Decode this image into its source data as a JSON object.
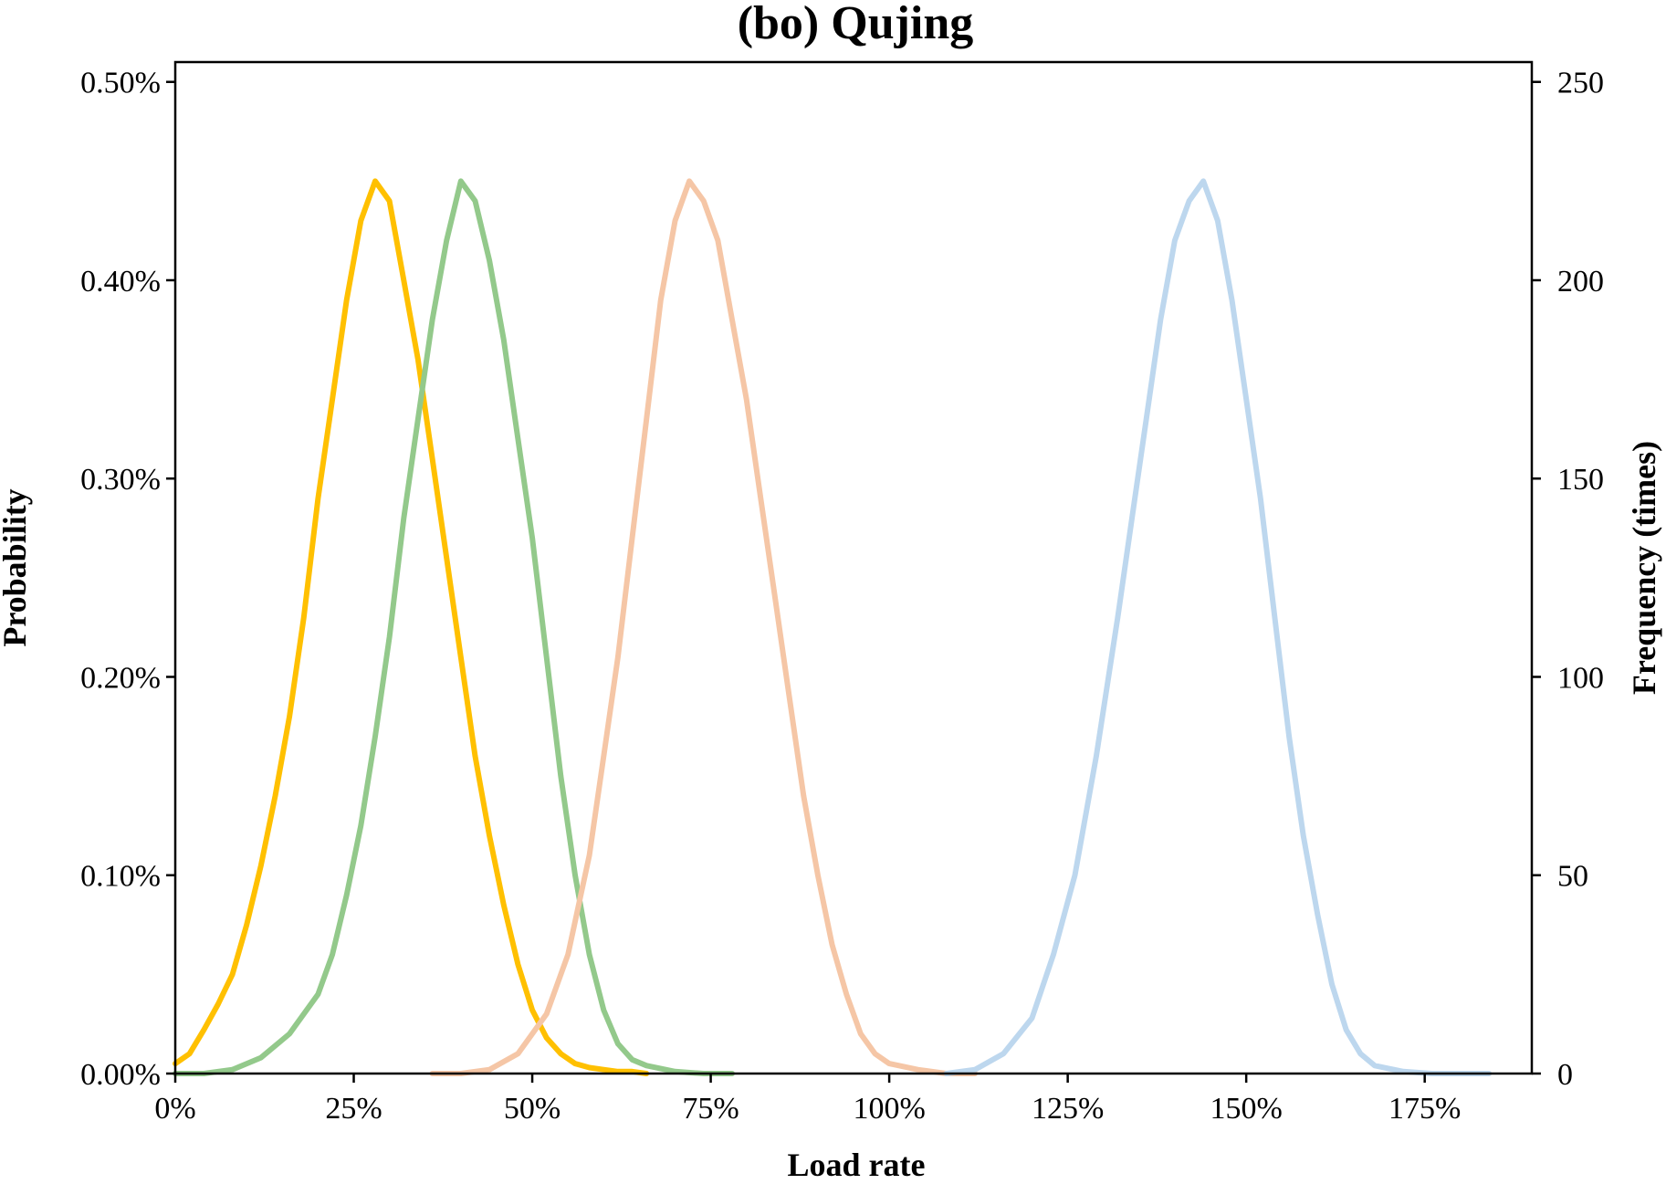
{
  "chart_data": {
    "type": "line",
    "title": "(bo) Qujing",
    "xlabel": "Load rate",
    "ylabel": "Probability",
    "y2label": "Frequency (times)",
    "xlim": [
      0,
      1.9
    ],
    "ylim": [
      0,
      0.0051
    ],
    "y2lim": [
      0,
      255
    ],
    "x_ticks": [
      0,
      0.25,
      0.5,
      0.75,
      1.0,
      1.25,
      1.5,
      1.75
    ],
    "x_tick_labels": [
      "0%",
      "25%",
      "50%",
      "75%",
      "100%",
      "125%",
      "150%",
      "175%"
    ],
    "y_ticks": [
      0,
      0.001,
      0.002,
      0.003,
      0.004,
      0.005
    ],
    "y_tick_labels": [
      "0.00%",
      "0.10%",
      "0.20%",
      "0.30%",
      "0.40%",
      "0.50%"
    ],
    "y2_ticks": [
      0,
      50,
      100,
      150,
      200,
      250
    ],
    "y2_tick_labels": [
      "0",
      "50",
      "100",
      "150",
      "200",
      "250"
    ],
    "grid": false,
    "series": [
      {
        "color": "#FFC000",
        "x": [
          0.0,
          0.02,
          0.04,
          0.06,
          0.08,
          0.1,
          0.12,
          0.14,
          0.16,
          0.18,
          0.2,
          0.22,
          0.24,
          0.26,
          0.28,
          0.3,
          0.32,
          0.34,
          0.36,
          0.38,
          0.4,
          0.42,
          0.44,
          0.46,
          0.48,
          0.5,
          0.52,
          0.54,
          0.56,
          0.58,
          0.6,
          0.62,
          0.64,
          0.66
        ],
        "y": [
          5e-05,
          0.0001,
          0.00022,
          0.00035,
          0.0005,
          0.00075,
          0.00105,
          0.0014,
          0.0018,
          0.0023,
          0.0029,
          0.0034,
          0.0039,
          0.0043,
          0.0045,
          0.0044,
          0.004,
          0.0036,
          0.0031,
          0.0026,
          0.0021,
          0.0016,
          0.0012,
          0.00085,
          0.00055,
          0.00032,
          0.00018,
          0.0001,
          5e-05,
          3e-05,
          2e-05,
          1e-05,
          1e-05,
          0.0
        ]
      },
      {
        "color": "#93C98B",
        "x": [
          0.0,
          0.04,
          0.08,
          0.12,
          0.16,
          0.2,
          0.22,
          0.24,
          0.26,
          0.28,
          0.3,
          0.32,
          0.34,
          0.36,
          0.38,
          0.4,
          0.42,
          0.44,
          0.46,
          0.48,
          0.5,
          0.52,
          0.54,
          0.56,
          0.58,
          0.6,
          0.62,
          0.64,
          0.66,
          0.7,
          0.74,
          0.78
        ],
        "y": [
          0.0,
          0.0,
          2e-05,
          8e-05,
          0.0002,
          0.0004,
          0.0006,
          0.0009,
          0.00125,
          0.0017,
          0.0022,
          0.0028,
          0.0033,
          0.0038,
          0.0042,
          0.0045,
          0.0044,
          0.0041,
          0.0037,
          0.0032,
          0.0027,
          0.0021,
          0.0015,
          0.001,
          0.0006,
          0.00032,
          0.00015,
          7e-05,
          4e-05,
          1e-05,
          0.0,
          0.0
        ]
      },
      {
        "color": "#F5C6A6",
        "x": [
          0.36,
          0.4,
          0.44,
          0.48,
          0.52,
          0.55,
          0.58,
          0.6,
          0.62,
          0.64,
          0.66,
          0.68,
          0.7,
          0.72,
          0.74,
          0.76,
          0.78,
          0.8,
          0.82,
          0.84,
          0.86,
          0.88,
          0.9,
          0.92,
          0.94,
          0.96,
          0.98,
          1.0,
          1.04,
          1.08,
          1.12
        ],
        "y": [
          0.0,
          0.0,
          2e-05,
          0.0001,
          0.0003,
          0.0006,
          0.0011,
          0.0016,
          0.0021,
          0.0027,
          0.0033,
          0.0039,
          0.0043,
          0.0045,
          0.0044,
          0.0042,
          0.0038,
          0.0034,
          0.0029,
          0.0024,
          0.0019,
          0.0014,
          0.001,
          0.00065,
          0.0004,
          0.0002,
          0.0001,
          5e-05,
          2e-05,
          0.0,
          0.0
        ]
      },
      {
        "color": "#BDD7EE",
        "x": [
          1.08,
          1.12,
          1.16,
          1.2,
          1.23,
          1.26,
          1.29,
          1.32,
          1.34,
          1.36,
          1.38,
          1.4,
          1.42,
          1.44,
          1.46,
          1.48,
          1.5,
          1.52,
          1.54,
          1.56,
          1.58,
          1.6,
          1.62,
          1.64,
          1.66,
          1.68,
          1.72,
          1.76,
          1.8,
          1.84
        ],
        "y": [
          0.0,
          2e-05,
          0.0001,
          0.00028,
          0.0006,
          0.001,
          0.0016,
          0.0023,
          0.0028,
          0.0033,
          0.0038,
          0.0042,
          0.0044,
          0.0045,
          0.0043,
          0.0039,
          0.0034,
          0.0029,
          0.0023,
          0.0017,
          0.0012,
          0.0008,
          0.00045,
          0.00022,
          0.0001,
          4e-05,
          1e-05,
          0.0,
          0.0,
          0.0
        ]
      }
    ]
  }
}
